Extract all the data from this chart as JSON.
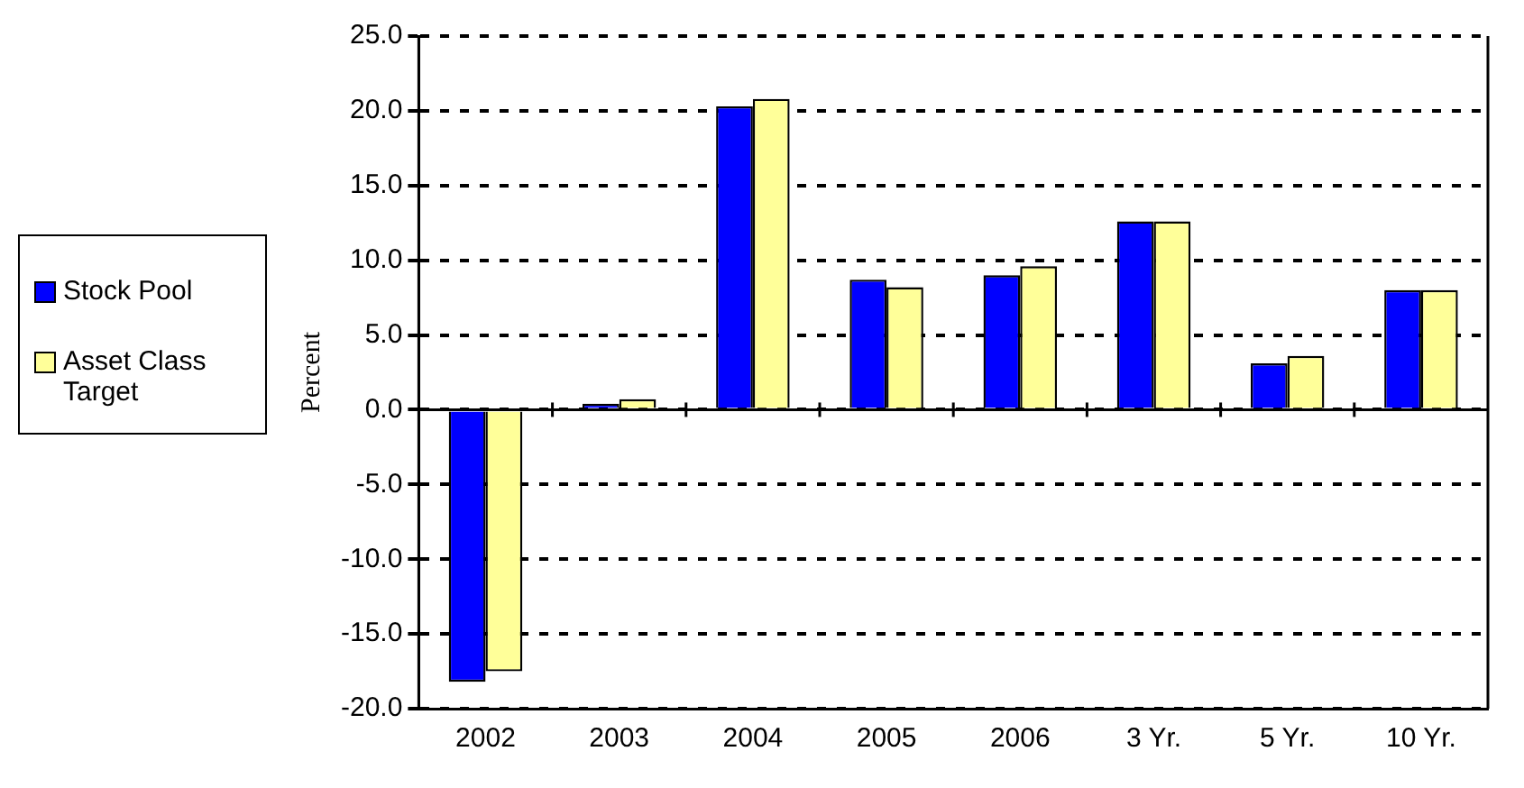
{
  "chart_data": {
    "type": "bar",
    "ylabel": "Percent",
    "categories": [
      "2002",
      "2003",
      "2004",
      "2005",
      "2006",
      "3 Yr.",
      "5 Yr.",
      "10 Yr."
    ],
    "series": [
      {
        "name": "Stock Pool",
        "color": "#0000ff",
        "values": [
          -18.2,
          0.4,
          20.3,
          8.7,
          9.0,
          12.6,
          3.1,
          8.0
        ]
      },
      {
        "name": "Asset Class Target",
        "color": "#ffff99",
        "values": [
          -17.5,
          0.7,
          20.8,
          8.2,
          9.6,
          12.6,
          3.6,
          8.0
        ]
      }
    ],
    "ylim": [
      -20,
      25
    ],
    "yticks": [
      {
        "value": -20,
        "label": "-20.0"
      },
      {
        "value": -15,
        "label": "-15.0"
      },
      {
        "value": -10,
        "label": "-10.0"
      },
      {
        "value": -5,
        "label": "-5.0"
      },
      {
        "value": 0,
        "label": "0.0"
      },
      {
        "value": 5,
        "label": "5.0"
      },
      {
        "value": 10,
        "label": "10.0"
      },
      {
        "value": 15,
        "label": "15.0"
      },
      {
        "value": 20,
        "label": "20.0"
      },
      {
        "value": 25,
        "label": "25.0"
      }
    ],
    "grid": "y",
    "legend": "left"
  }
}
